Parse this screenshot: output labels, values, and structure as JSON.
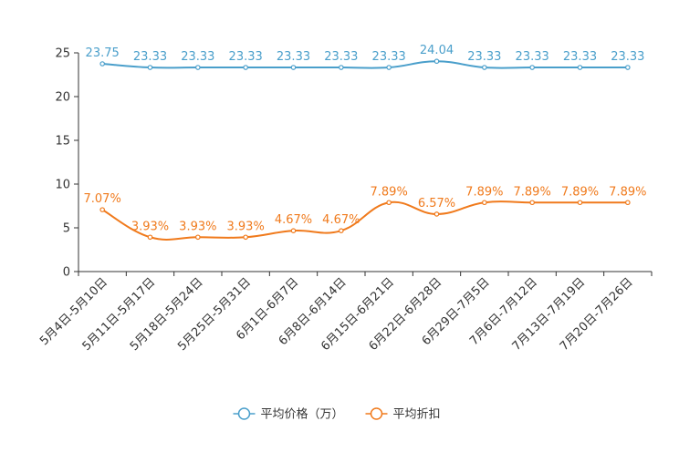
{
  "chart_data": {
    "type": "line",
    "categories": [
      "5月4日-5月10日",
      "5月11日-5月17日",
      "5月18日-5月24日",
      "5月25日-5月31日",
      "6月1日-6月7日",
      "6月8日-6月14日",
      "6月15日-6月21日",
      "6月22日-6月28日",
      "6月29日-7月5日",
      "7月6日-7月12日",
      "7月13日-7月19日",
      "7月20日-7月26日"
    ],
    "series": [
      {
        "name": "平均价格（万）",
        "color": "#4a9fcb",
        "values": [
          23.75,
          23.33,
          23.33,
          23.33,
          23.33,
          23.33,
          23.33,
          24.04,
          23.33,
          23.33,
          23.33,
          23.33
        ],
        "labels": [
          "23.75",
          "23.33",
          "23.33",
          "23.33",
          "23.33",
          "23.33",
          "23.33",
          "24.04",
          "23.33",
          "23.33",
          "23.33",
          "23.33"
        ]
      },
      {
        "name": "平均折扣",
        "color": "#f07a1c",
        "values": [
          7.07,
          3.93,
          3.93,
          3.93,
          4.67,
          4.67,
          7.89,
          6.57,
          7.89,
          7.89,
          7.89,
          7.89
        ],
        "labels": [
          "7.07%",
          "3.93%",
          "3.93%",
          "3.93%",
          "4.67%",
          "4.67%",
          "7.89%",
          "6.57%",
          "7.89%",
          "7.89%",
          "7.89%",
          "7.89%"
        ]
      }
    ],
    "yticks": [
      "0",
      "5",
      "10",
      "15",
      "20",
      "25"
    ],
    "ylim": [
      0,
      25
    ],
    "title": "",
    "xlabel": "",
    "ylabel": "",
    "legend": "bottom-center",
    "grid": false
  }
}
